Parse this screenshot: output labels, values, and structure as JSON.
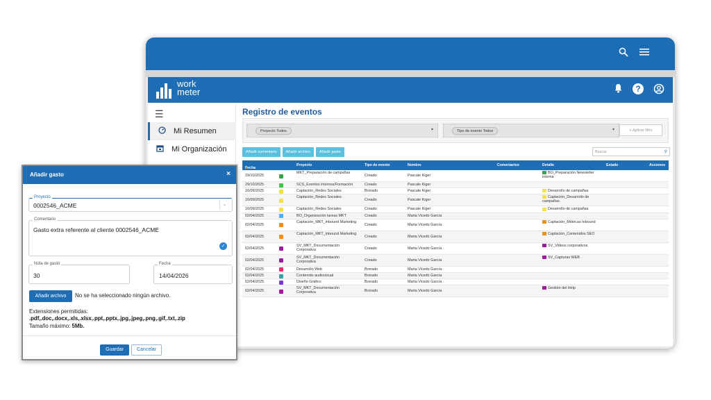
{
  "browser": {
    "icons": [
      "search-icon",
      "menu-icon"
    ]
  },
  "brand": {
    "line1": "work",
    "line2": "meter",
    "color": "#1f6db5"
  },
  "header_icons": [
    "bell-icon",
    "help-icon",
    "user-icon"
  ],
  "sidebar": {
    "items": [
      {
        "label": "Mi Resumen",
        "icon": "speedometer-icon",
        "active": true
      },
      {
        "label": "Mi Organización",
        "icon": "calendar-icon",
        "active": false
      }
    ]
  },
  "main": {
    "title": "Registro de eventos",
    "filters": {
      "project": "Proyecto Todos",
      "event_type": "Tipo de evento Todos",
      "apply": "Aplicar filtro"
    },
    "actions": [
      "Añadir comentario",
      "Añadir archivo",
      "Añadir gasto"
    ],
    "search_placeholder": "Buscar",
    "columns": [
      "Fecha",
      "Proyecto",
      "Tipo de evento",
      "Nombre",
      "Comentarios",
      "Detalle",
      "Estado",
      "Acciones"
    ],
    "rows": [
      {
        "date": "29/10/2025",
        "color": "#3aa34a",
        "project": "MKT_Preparación de campañas",
        "type": "Creado",
        "name": "Pascale Kiger",
        "detail": "BO_Preparación Newsletter interna",
        "detail_color": "#3aa34a",
        "tall": true
      },
      {
        "date": "29/10/2025",
        "color": "#44c44a",
        "project": "SCS_Eventos internos/Formación",
        "type": "Creado",
        "name": "Pascale Kiger",
        "detail": "",
        "detail_color": "",
        "tall": false
      },
      {
        "date": "16/09/2025",
        "color": "#f2e24a",
        "project": "Captación_Redes Sociales",
        "type": "Borrado",
        "name": "Pascale Kiger",
        "detail": "Desarrollo de campañas",
        "detail_color": "#f2e24a",
        "tall": false
      },
      {
        "date": "16/09/2025",
        "color": "#f2e24a",
        "project": "Captación_Redes Sociales",
        "type": "Creado",
        "name": "Pascale Kiger",
        "detail": "Captación_Desarrollo de campañas",
        "detail_color": "#f2e24a",
        "tall": true
      },
      {
        "date": "16/09/2025",
        "color": "#f2e24a",
        "project": "Captación_Redes Sociales",
        "type": "Creado",
        "name": "Pascale Kiger",
        "detail": "Desarrollo de campañas",
        "detail_color": "#f2e24a",
        "tall": false
      },
      {
        "date": "02/04/2025",
        "color": "#4db3e6",
        "project": "BO_Organización tareas MKT",
        "type": "Creado",
        "name": "Marta Vicedo García",
        "detail": "",
        "detail_color": "",
        "tall": false
      },
      {
        "date": "02/04/2025",
        "color": "#ef8c1a",
        "project": "Captación_MKT_Inbound Marketing",
        "type": "Creado",
        "name": "Marta Vicedo García",
        "detail": "Captación_Métricas Inbound",
        "detail_color": "#ef8c1a",
        "tall": true
      },
      {
        "date": "02/04/2025",
        "color": "#ef8c1a",
        "project": "Captación_MKT_Inbound Marketing",
        "type": "Creado",
        "name": "Marta Vicedo García",
        "detail": "Captación_Contenidos SEO",
        "detail_color": "#ef8c1a",
        "tall": true
      },
      {
        "date": "02/04/2025",
        "color": "#9b1d9b",
        "project": "SV_MKT_Documentación Corporativa",
        "type": "Creado",
        "name": "Marta Vicedo García",
        "detail": "SV_Videos corporativos",
        "detail_color": "#9b1d9b",
        "tall": true
      },
      {
        "date": "02/04/2025",
        "color": "#9b1d9b",
        "project": "SV_MKT_Documentación Corporativa",
        "type": "Creado",
        "name": "Marta Vicedo García",
        "detail": "SV_Capturas WEB",
        "detail_color": "#9b1d9b",
        "tall": true
      },
      {
        "date": "02/04/2025",
        "color": "#e0306a",
        "project": "Desarrollo Web",
        "type": "Borrado",
        "name": "Marta Vicedo García",
        "detail": "",
        "detail_color": "",
        "tall": false
      },
      {
        "date": "02/04/2025",
        "color": "#3a9fa5",
        "project": "Contenido audiovisual",
        "type": "Borrado",
        "name": "Marta Vicedo García",
        "detail": "",
        "detail_color": "",
        "tall": false
      },
      {
        "date": "02/04/2025",
        "color": "#7a3ad8",
        "project": "Diseño Gráfico",
        "type": "Borrado",
        "name": "Marta Vicedo García",
        "detail": "",
        "detail_color": "",
        "tall": false
      },
      {
        "date": "02/04/2025",
        "color": "#9b1d9b",
        "project": "SV_MKT_Documentación Corporativa",
        "type": "Borrado",
        "name": "Marta Vicedo García",
        "detail": "Gestión del Help",
        "detail_color": "#9b1d9b",
        "tall": true
      }
    ]
  },
  "modal": {
    "title": "Añadir gasto",
    "close": "×",
    "project_label": "Proyecto",
    "project_value": "0002546_ACME",
    "comment_label": "Comentario",
    "comment_value": "Gasto extra referente al cliente 0002546_ACME",
    "amount_label": "Nota de gasto",
    "amount_value": "30",
    "date_label": "Fecha",
    "date_value": "14/04/2026",
    "upload_button": "Añadir archivo",
    "upload_status": "No se ha seleccionado ningún archivo.",
    "extensions_label": "Extensiones permitidas:",
    "extensions": ".pdf,.doc,.docx,.xls,.xlsx,.ppt,.pptx,.jpg,.jpeg,.png,.gif,.txt,.zip",
    "max_size_label": "Tamaño máximo: ",
    "max_size": "5Mb.",
    "save": "Guardar",
    "cancel": "Cancelar"
  }
}
